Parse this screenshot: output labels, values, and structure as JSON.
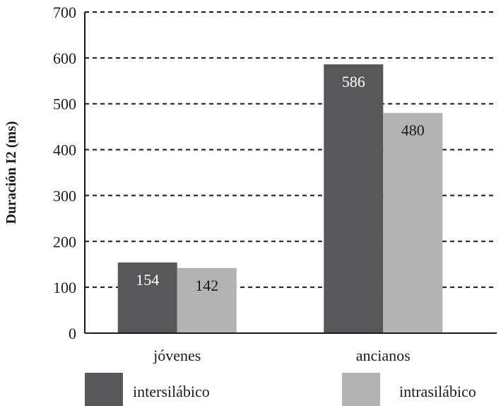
{
  "chart_data": {
    "type": "bar",
    "title": "",
    "xlabel": "",
    "ylabel": "Duración I2 (ms)",
    "categories": [
      "jóvenes",
      "ancianos"
    ],
    "series": [
      {
        "name": "intersilábico",
        "values": [
          154,
          586
        ],
        "color": "#58585a",
        "label_color": "#ffffff"
      },
      {
        "name": "intrasilábico",
        "values": [
          142,
          480
        ],
        "color": "#b3b3b3",
        "label_color": "#1a1a1a"
      }
    ],
    "ylim": [
      0,
      700
    ],
    "yticks": [
      "0",
      "100",
      "200",
      "300",
      "400",
      "500",
      "600",
      "700"
    ],
    "data_labels": [
      [
        "154",
        "586"
      ],
      [
        "142",
        "480"
      ]
    ],
    "grid": "dashed horizontal",
    "legend_position": "bottom"
  }
}
